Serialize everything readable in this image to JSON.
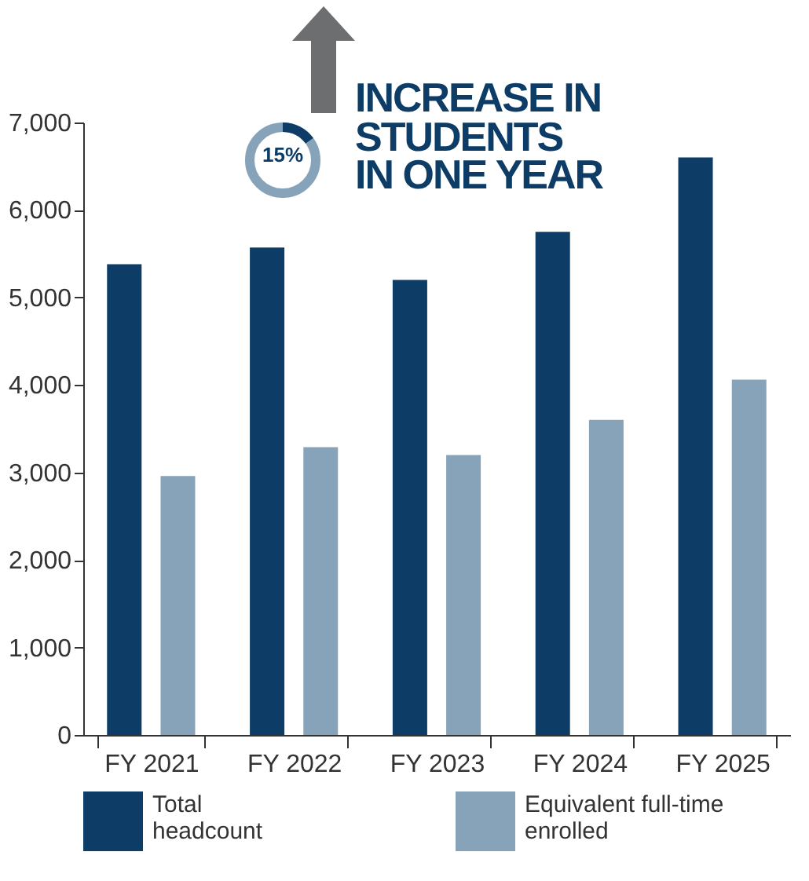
{
  "chart_data": {
    "type": "bar",
    "categories": [
      "FY 2021",
      "FY 2022",
      "FY 2023",
      "FY 2024",
      "FY 2025"
    ],
    "series": [
      {
        "name": "Total headcount",
        "color": "#0d3d66",
        "values": [
          5380,
          5570,
          5200,
          5750,
          6600
        ]
      },
      {
        "name": "Equivalent full-time enrolled",
        "color": "#87a3ba",
        "values": [
          2960,
          3290,
          3200,
          3600,
          4060
        ]
      }
    ],
    "ylim": [
      0,
      7000
    ],
    "yticks": [
      {
        "value": 0,
        "label": "0"
      },
      {
        "value": 1000,
        "label": "1,000"
      },
      {
        "value": 2000,
        "label": "2,000"
      },
      {
        "value": 3000,
        "label": "3,000"
      },
      {
        "value": 4000,
        "label": "4,000"
      },
      {
        "value": 5000,
        "label": "5,000"
      },
      {
        "value": 6000,
        "label": "6,000"
      },
      {
        "value": 7000,
        "label": "7,000"
      }
    ],
    "legend": "bottom",
    "grid": false,
    "annotations": [
      "15%",
      "INCREASE IN\nSTUDENTS\nIN ONE YEAR"
    ]
  }
}
